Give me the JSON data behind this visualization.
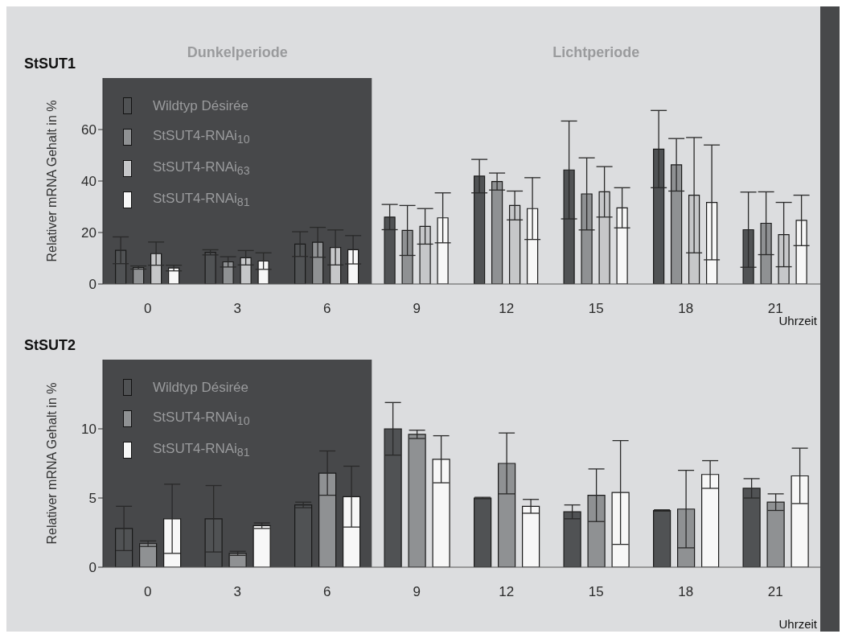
{
  "chart_data": [
    {
      "type": "bar",
      "title": "StSUT1",
      "xlabel": "Uhrzeit",
      "ylabel": "Relativer mRNA Gehalt  in %",
      "x": [
        0,
        3,
        6,
        9,
        12,
        15,
        18,
        21
      ],
      "xlim": [
        -1.5,
        22.5
      ],
      "xticks": [
        0,
        3,
        6,
        9,
        12,
        15,
        18,
        21
      ],
      "series": [
        {
          "name": "Wildtyp Désirée",
          "color": "#505254",
          "values": [
            13.1,
            12.3,
            15.5,
            26.0,
            41.9,
            44.3,
            52.4,
            21.1
          ],
          "errors": [
            5.2,
            1,
            4.8,
            4.9,
            6.5,
            19,
            15,
            14.6
          ]
        },
        {
          "name": "StSUT4-RNAi$_{10}$",
          "color": "#8f9193",
          "values": [
            6.4,
            8.6,
            16.2,
            20.8,
            39.8,
            35.0,
            46.3,
            23.6
          ],
          "errors": [
            0.6,
            2,
            5.8,
            9.7,
            3.3,
            14,
            10.2,
            12.2
          ]
        },
        {
          "name": "StSUT4-RNAi$_{63}$",
          "color": "#c6c7c9",
          "values": [
            11.8,
            10.2,
            14.2,
            22.4,
            30.5,
            35.8,
            34.5,
            19.2
          ],
          "errors": [
            4.5,
            2.8,
            6.8,
            6.9,
            5.6,
            9.8,
            22.4,
            12.5
          ]
        },
        {
          "name": "StSUT4-RNAi$_{81}$",
          "color": "#f7f7f7",
          "values": [
            6.2,
            8.9,
            13.3,
            25.7,
            29.3,
            29.6,
            31.7,
            24.7
          ],
          "errors": [
            1.1,
            3.2,
            5.5,
            9.7,
            12,
            7.8,
            22.3,
            9.8
          ]
        }
      ],
      "ylim": [
        0,
        80
      ],
      "yticks": [
        0,
        20,
        40,
        60
      ],
      "grid": false,
      "legend": "top left",
      "bands": [
        {
          "axis": "x",
          "from": -1.5,
          "to": 7.5,
          "label": "Dunkelperiode",
          "color": "#47484a"
        },
        {
          "axis": "x",
          "from": 7.5,
          "to": 22.5,
          "label": "Lichtperiode",
          "color": "#dcdddf"
        }
      ]
    },
    {
      "type": "bar",
      "title": "StSUT2",
      "xlabel": "Uhrzeit",
      "ylabel": "Relativer mRNA Gehalt  in %",
      "x": [
        0,
        3,
        6,
        9,
        12,
        15,
        18,
        21
      ],
      "xlim": [
        -1.5,
        22.5
      ],
      "xticks": [
        0,
        3,
        6,
        9,
        12,
        15,
        18,
        21
      ],
      "series": [
        {
          "name": "Wildtyp Désirée",
          "color": "#505254",
          "values": [
            2.8,
            3.5,
            4.5,
            10.0,
            5.0,
            4.0,
            4.1,
            5.7
          ],
          "errors": [
            1.6,
            2.4,
            0.2,
            1.9,
            0.05,
            0.5,
            0.05,
            0.7
          ]
        },
        {
          "name": "StSUT4-RNAi$_{10}$",
          "color": "#8f9193",
          "values": [
            1.7,
            1.0,
            6.8,
            9.6,
            7.5,
            5.2,
            4.2,
            4.7
          ],
          "errors": [
            0.2,
            0.15,
            1.6,
            0.3,
            2.2,
            1.9,
            2.8,
            0.6
          ]
        },
        {
          "name": "StSUT4-RNAi$_{81}$",
          "color": "#f7f7f7",
          "values": [
            3.5,
            3.0,
            5.1,
            7.8,
            4.4,
            5.4,
            6.7,
            6.6
          ],
          "errors": [
            2.5,
            0.2,
            2.2,
            1.7,
            0.5,
            3.75,
            1.0,
            2.0
          ]
        }
      ],
      "ylim": [
        0,
        15
      ],
      "yticks": [
        0,
        5,
        10
      ],
      "grid": false,
      "legend": "top left",
      "bands": [
        {
          "axis": "x",
          "from": -1.5,
          "to": 7.5,
          "color": "#47484a"
        },
        {
          "axis": "x",
          "from": 7.5,
          "to": 22.5,
          "color": "#dcdddf"
        }
      ]
    }
  ]
}
